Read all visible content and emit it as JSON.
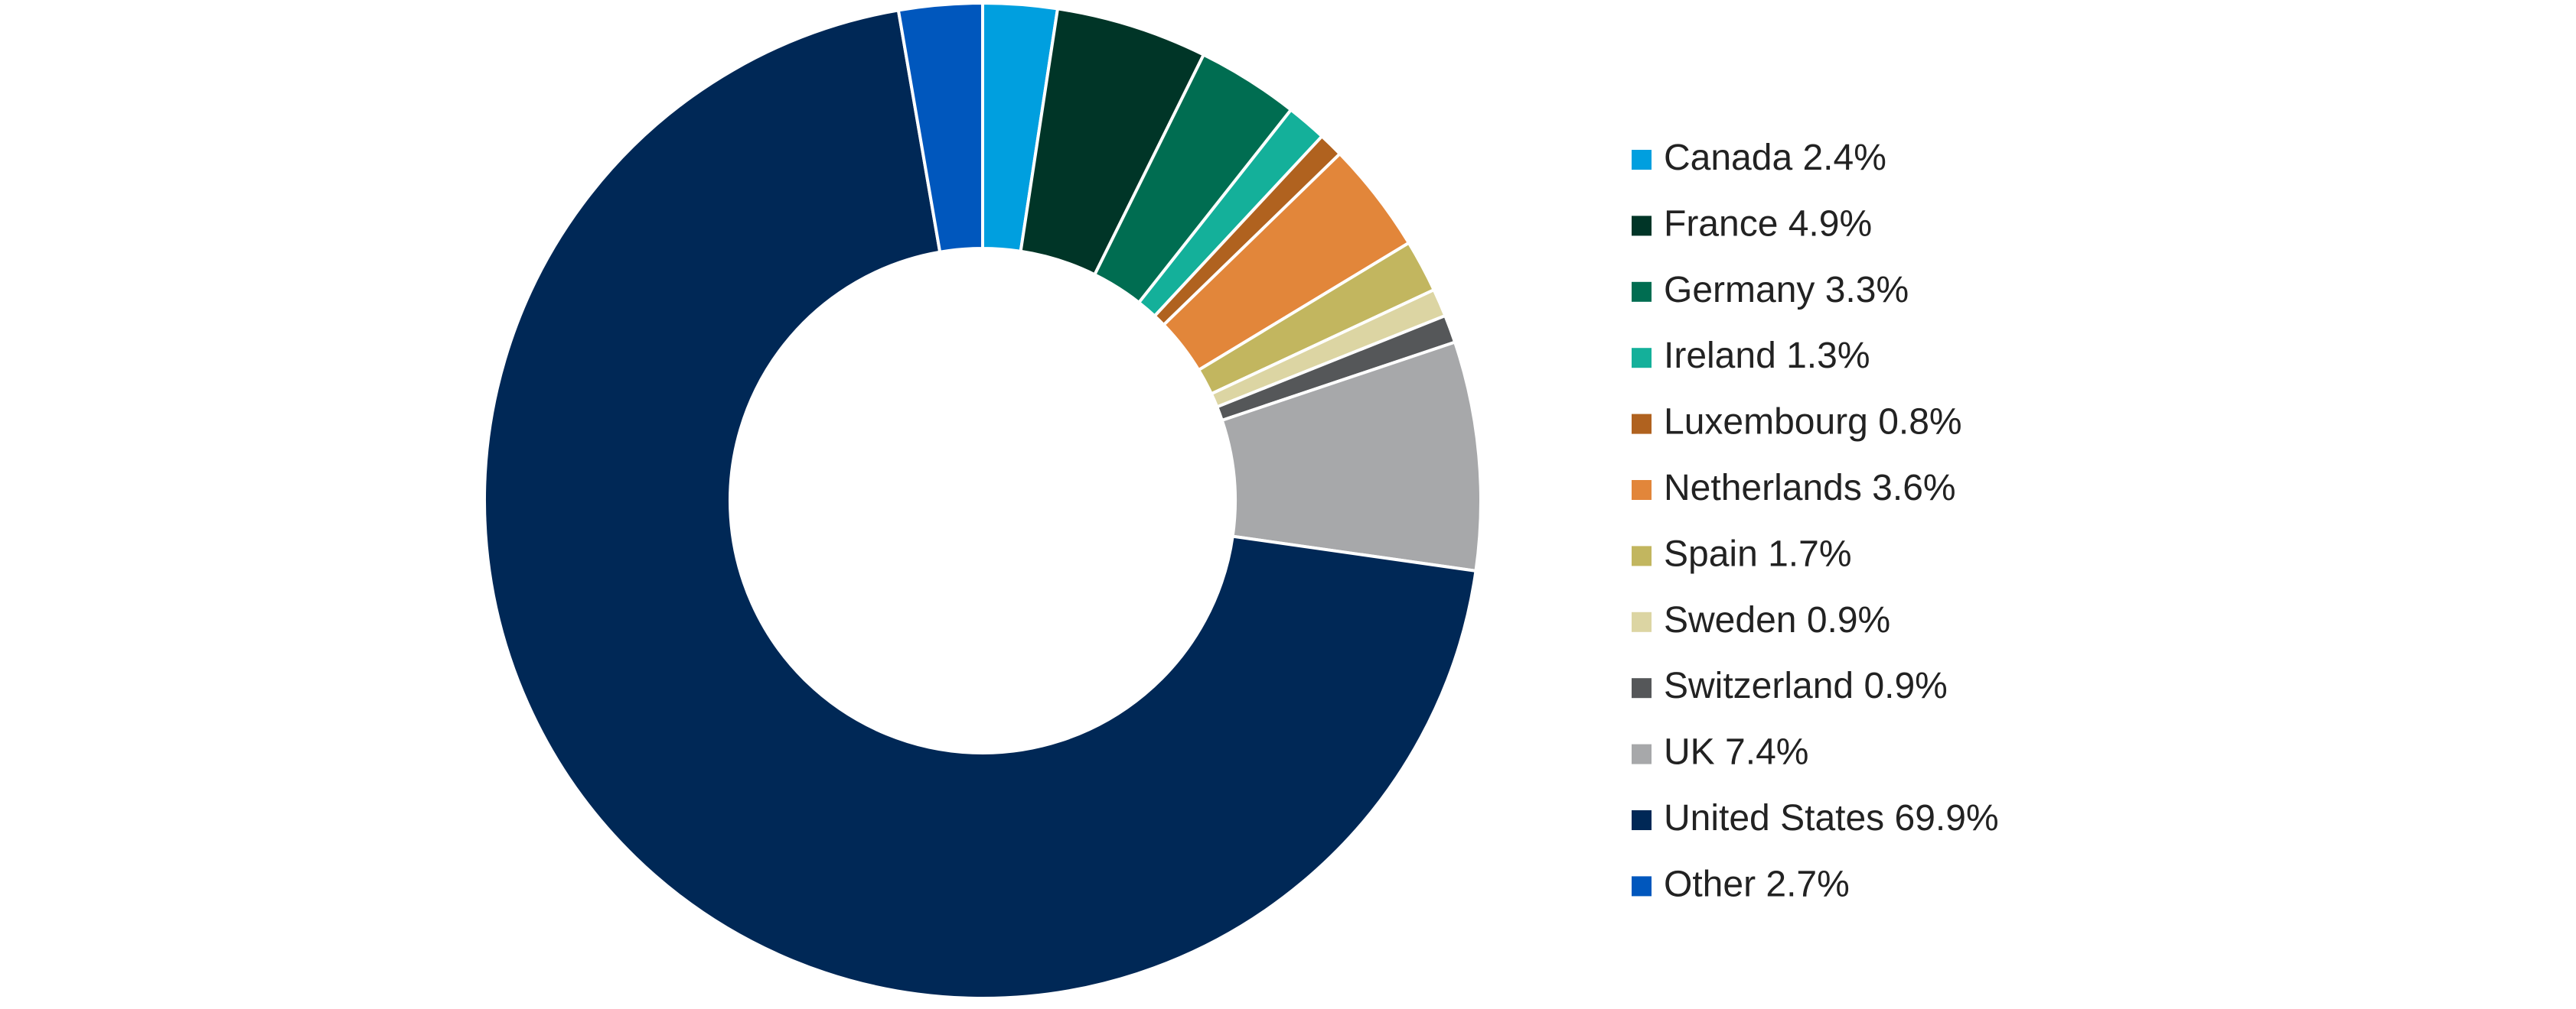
{
  "chart_data": {
    "type": "donut",
    "categories": [
      "Canada",
      "France",
      "Germany",
      "Ireland",
      "Luxembourg",
      "Netherlands",
      "Spain",
      "Sweden",
      "Switzerland",
      "UK",
      "United States",
      "Other"
    ],
    "values": [
      2.4,
      4.9,
      3.3,
      1.3,
      0.8,
      3.6,
      1.7,
      0.9,
      0.9,
      7.4,
      69.9,
      2.7
    ],
    "value_labels": [
      "2.4%",
      "4.9%",
      "3.3%",
      "1.3%",
      "0.8%",
      "3.6%",
      "1.7%",
      "0.9%",
      "0.9%",
      "7.4%",
      "69.9%",
      "2.7%"
    ],
    "colors": [
      "#009fdf",
      "#003527",
      "#006d51",
      "#14b09a",
      "#b0621f",
      "#e2863a",
      "#c2b65f",
      "#dcd5a3",
      "#555759",
      "#a7a8aa",
      "#002856",
      "#0057bd"
    ],
    "legend": "right"
  }
}
